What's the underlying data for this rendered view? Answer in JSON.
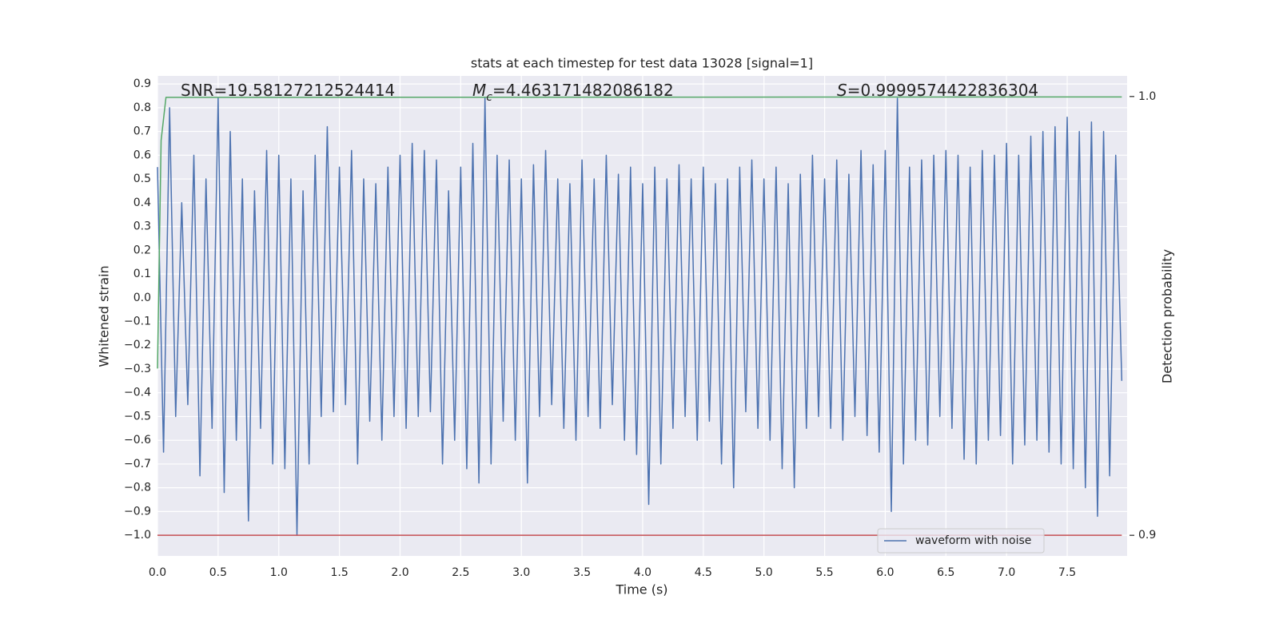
{
  "chart_data": {
    "type": "line",
    "title": "stats at each timestep for test data 13028 [signal=1]",
    "x_label": "Time (s)",
    "y_label": "Whitened strain",
    "y2_label": "Detection probability",
    "annotations": [
      {
        "text": "SNR=19.58127212524414"
      },
      {
        "symbol": "M",
        "subscript": "c",
        "text": "=4.463171482086182"
      },
      {
        "symbol": "S",
        "text": "=0.9999574422836304"
      }
    ],
    "xlim": [
      0,
      7.994
    ],
    "ylim": [
      -1.087,
      0.934
    ],
    "y2lim": [
      0.8953,
      1.0047
    ],
    "xticks": [
      {
        "value": 0,
        "label": "0.0"
      },
      {
        "value": 0.5,
        "label": "0.5"
      },
      {
        "value": 1,
        "label": "1.0"
      },
      {
        "value": 1.5,
        "label": "1.5"
      },
      {
        "value": 2,
        "label": "2.0"
      },
      {
        "value": 2.5,
        "label": "2.5"
      },
      {
        "value": 3,
        "label": "3.0"
      },
      {
        "value": 3.5,
        "label": "3.5"
      },
      {
        "value": 4,
        "label": "4.0"
      },
      {
        "value": 4.5,
        "label": "4.5"
      },
      {
        "value": 5,
        "label": "5.0"
      },
      {
        "value": 5.5,
        "label": "5.5"
      },
      {
        "value": 6,
        "label": "6.0"
      },
      {
        "value": 6.5,
        "label": "6.5"
      },
      {
        "value": 7,
        "label": "7.0"
      },
      {
        "value": 7.5,
        "label": "7.5"
      }
    ],
    "yticks": [
      {
        "value": -1,
        "label": "−1.0"
      },
      {
        "value": -0.9,
        "label": "−0.9"
      },
      {
        "value": -0.8,
        "label": "−0.8"
      },
      {
        "value": -0.7,
        "label": "−0.7"
      },
      {
        "value": -0.6,
        "label": "−0.6"
      },
      {
        "value": -0.5,
        "label": "−0.5"
      },
      {
        "value": -0.4,
        "label": "−0.4"
      },
      {
        "value": -0.3,
        "label": "−0.3"
      },
      {
        "value": -0.2,
        "label": "−0.2"
      },
      {
        "value": -0.1,
        "label": "−0.1"
      },
      {
        "value": 0,
        "label": "0.0"
      },
      {
        "value": 0.1,
        "label": "0.1"
      },
      {
        "value": 0.2,
        "label": "0.2"
      },
      {
        "value": 0.3,
        "label": "0.3"
      },
      {
        "value": 0.4,
        "label": "0.4"
      },
      {
        "value": 0.5,
        "label": "0.5"
      },
      {
        "value": 0.6,
        "label": "0.6"
      },
      {
        "value": 0.7,
        "label": "0.7"
      },
      {
        "value": 0.8,
        "label": "0.8"
      },
      {
        "value": 0.9,
        "label": "0.9"
      }
    ],
    "y2ticks": [
      {
        "value": 0.9,
        "label": "0.9"
      },
      {
        "value": 1,
        "label": "1.0"
      }
    ],
    "grid": true,
    "legend": "lower right",
    "series": [
      {
        "name": "waveform with noise",
        "color": "#4c72b0",
        "x": [
          0,
          0.05,
          0.1,
          0.15,
          0.2,
          0.25,
          0.3,
          0.35,
          0.4,
          0.45,
          0.5,
          0.55,
          0.6,
          0.65,
          0.7,
          0.75,
          0.8,
          0.85,
          0.9,
          0.95,
          1,
          1.05,
          1.1,
          1.15,
          1.2,
          1.25,
          1.3,
          1.35,
          1.4,
          1.45,
          1.5,
          1.55,
          1.6,
          1.65,
          1.7,
          1.75,
          1.8,
          1.85,
          1.9,
          1.95,
          2,
          2.05,
          2.1,
          2.15,
          2.2,
          2.25,
          2.3,
          2.35,
          2.4,
          2.45,
          2.5,
          2.55,
          2.6,
          2.65,
          2.7,
          2.75,
          2.8,
          2.85,
          2.9,
          2.95,
          3,
          3.05,
          3.1,
          3.15,
          3.2,
          3.25,
          3.3,
          3.35,
          3.4,
          3.45,
          3.5,
          3.55,
          3.6,
          3.65,
          3.7,
          3.75,
          3.8,
          3.85,
          3.9,
          3.95,
          4,
          4.05,
          4.1,
          4.15,
          4.2,
          4.25,
          4.3,
          4.35,
          4.4,
          4.45,
          4.5,
          4.55,
          4.6,
          4.65,
          4.7,
          4.75,
          4.8,
          4.85,
          4.9,
          4.95,
          5,
          5.05,
          5.1,
          5.15,
          5.2,
          5.25,
          5.3,
          5.35,
          5.4,
          5.45,
          5.5,
          5.55,
          5.6,
          5.65,
          5.7,
          5.75,
          5.8,
          5.85,
          5.9,
          5.95,
          6,
          6.05,
          6.1,
          6.15,
          6.2,
          6.25,
          6.3,
          6.35,
          6.4,
          6.45,
          6.5,
          6.55,
          6.6,
          6.65,
          6.7,
          6.75,
          6.8,
          6.85,
          6.9,
          6.95,
          7,
          7.05,
          7.1,
          7.15,
          7.2,
          7.25,
          7.3,
          7.35,
          7.4,
          7.45,
          7.5,
          7.55,
          7.6,
          7.65,
          7.7,
          7.75,
          7.8,
          7.85,
          7.9,
          7.95
        ],
        "values": [
          0.55,
          -0.65,
          0.8,
          -0.5,
          0.4,
          -0.45,
          0.6,
          -0.75,
          0.5,
          -0.55,
          0.84,
          -0.82,
          0.7,
          -0.6,
          0.5,
          -0.94,
          0.45,
          -0.55,
          0.62,
          -0.7,
          0.6,
          -0.72,
          0.5,
          -1.0,
          0.45,
          -0.7,
          0.6,
          -0.5,
          0.72,
          -0.48,
          0.55,
          -0.45,
          0.62,
          -0.7,
          0.5,
          -0.52,
          0.48,
          -0.6,
          0.55,
          -0.5,
          0.6,
          -0.55,
          0.65,
          -0.5,
          0.62,
          -0.48,
          0.58,
          -0.7,
          0.45,
          -0.6,
          0.55,
          -0.72,
          0.65,
          -0.78,
          0.84,
          -0.7,
          0.6,
          -0.52,
          0.58,
          -0.6,
          0.5,
          -0.78,
          0.56,
          -0.5,
          0.62,
          -0.45,
          0.5,
          -0.55,
          0.48,
          -0.6,
          0.58,
          -0.5,
          0.5,
          -0.55,
          0.6,
          -0.45,
          0.52,
          -0.6,
          0.55,
          -0.66,
          0.48,
          -0.87,
          0.55,
          -0.7,
          0.5,
          -0.55,
          0.56,
          -0.5,
          0.5,
          -0.6,
          0.55,
          -0.52,
          0.48,
          -0.7,
          0.5,
          -0.8,
          0.55,
          -0.48,
          0.58,
          -0.55,
          0.5,
          -0.6,
          0.55,
          -0.72,
          0.48,
          -0.8,
          0.52,
          -0.55,
          0.6,
          -0.5,
          0.5,
          -0.55,
          0.58,
          -0.6,
          0.52,
          -0.5,
          0.62,
          -0.58,
          0.56,
          -0.65,
          0.62,
          -0.9,
          0.84,
          -0.7,
          0.55,
          -0.6,
          0.58,
          -0.62,
          0.6,
          -0.5,
          0.62,
          -0.55,
          0.6,
          -0.68,
          0.55,
          -0.7,
          0.62,
          -0.6,
          0.6,
          -0.58,
          0.65,
          -0.7,
          0.6,
          -0.62,
          0.68,
          -0.6,
          0.7,
          -0.65,
          0.72,
          -0.7,
          0.76,
          -0.72,
          0.7,
          -0.8,
          0.74,
          -0.92,
          0.7,
          -0.75,
          0.6,
          -0.35
        ]
      },
      {
        "color": "#55a868",
        "axis": "y2",
        "x": [
          0,
          0.03,
          0.07,
          7.95
        ],
        "values": [
          0.938,
          0.99,
          0.9998,
          0.9999
        ]
      },
      {
        "color": "#c44e52",
        "axis": "y2",
        "x": [
          0,
          7.95
        ],
        "values": [
          0.9,
          0.9
        ]
      }
    ]
  }
}
